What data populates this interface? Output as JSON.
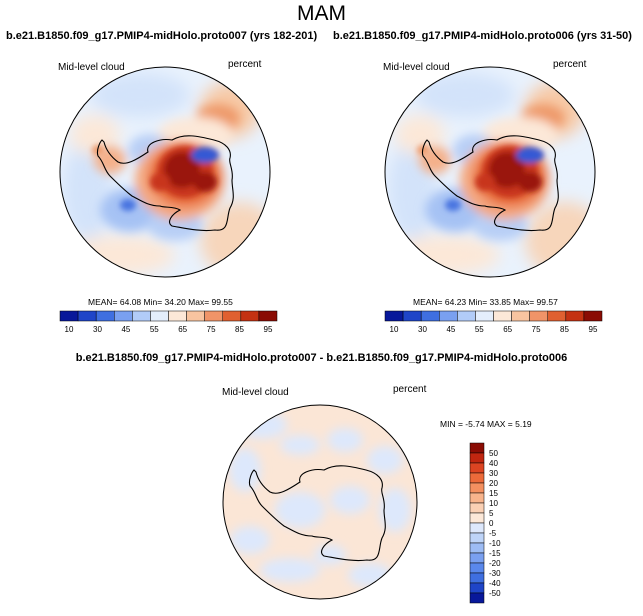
{
  "page": {
    "title": "MAM"
  },
  "colors": {
    "hi_palette": [
      "#08189a",
      "#1f45c8",
      "#3f6fe0",
      "#7aa0f0",
      "#b2ccf8",
      "#e4eefc",
      "#fce8d8",
      "#f8c4a0",
      "#f09468",
      "#e06030",
      "#c43212",
      "#8a0c04"
    ],
    "diff_palette": [
      "#08189a",
      "#1f45c8",
      "#3f6fe0",
      "#5a88ec",
      "#7aa0f0",
      "#9dbcf4",
      "#bed4f8",
      "#dde8fc",
      "#fce8d8",
      "#fad0b4",
      "#f8b48c",
      "#f49060",
      "#ec6a3a",
      "#dc4422",
      "#c02610",
      "#8a0c04"
    ],
    "coast": "#000000"
  },
  "panels": {
    "left": {
      "title": "b.e21.B1850.f09_g17.PMIP4-midHolo.proto007 (yrs 182-201)",
      "label_left": "Mid-level cloud",
      "label_right": "percent",
      "stats": "MEAN=  64.08  Min=  34.20  Max=  99.55"
    },
    "right": {
      "title": "b.e21.B1850.f09_g17.PMIP4-midHolo.proto006 (yrs 31-50)",
      "label_left": "Mid-level cloud",
      "label_right": "percent",
      "stats": "MEAN=  64.23  Min=  33.85  Max=  99.57"
    },
    "diff": {
      "title": "b.e21.B1850.f09_g17.PMIP4-midHolo.proto007 - b.e21.B1850.f09_g17.PMIP4-midHolo.proto006",
      "label_left": "Mid-level cloud",
      "label_right": "percent",
      "stats": "MIN =  -5.74 MAX =   5.19"
    }
  },
  "colorbar_main": {
    "labels": [
      "10",
      "30",
      "45",
      "55",
      "65",
      "75",
      "85",
      "95"
    ]
  },
  "colorbar_diff": {
    "labels": [
      "50",
      "40",
      "30",
      "20",
      "15",
      "10",
      "5",
      "0",
      "-5",
      "-10",
      "-15",
      "-20",
      "-30",
      "-40",
      "-50"
    ]
  }
}
